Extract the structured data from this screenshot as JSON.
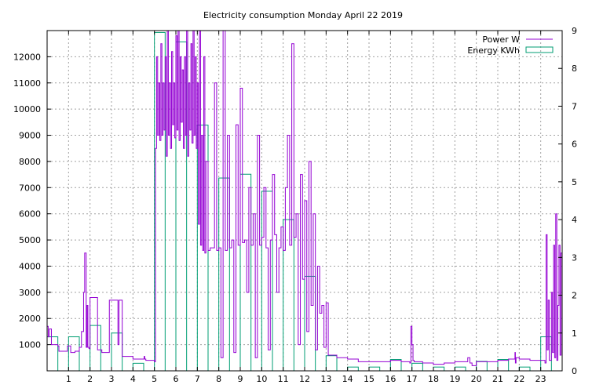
{
  "chart_data": {
    "type": "line",
    "title": "Electricity consumption Monday April 22 2019",
    "x_ticks": [
      1,
      2,
      3,
      4,
      5,
      6,
      7,
      8,
      9,
      10,
      11,
      12,
      13,
      14,
      15,
      16,
      17,
      18,
      19,
      20,
      21,
      22,
      23
    ],
    "xlim": [
      0,
      24
    ],
    "ylim": [
      0,
      13000
    ],
    "y_ticks": [
      1000,
      2000,
      3000,
      4000,
      5000,
      6000,
      7000,
      8000,
      9000,
      10000,
      11000,
      12000
    ],
    "y2lim": [
      0,
      9
    ],
    "y2_ticks": [
      0,
      1,
      2,
      3,
      4,
      5,
      6,
      7,
      8,
      9
    ],
    "grid": true,
    "legend_position": "top-right",
    "colors": {
      "power": "#9400d3",
      "energy": "#009e73",
      "grid": "#a0a0a0",
      "axis": "#000000"
    },
    "series": [
      {
        "name": "Power W",
        "axis": "left",
        "style": "line",
        "x": [
          0.0,
          0.05,
          0.1,
          0.2,
          0.3,
          0.5,
          0.55,
          0.8,
          0.95,
          1.0,
          1.1,
          1.2,
          1.3,
          1.5,
          1.6,
          1.7,
          1.75,
          1.82,
          1.86,
          1.9,
          1.95,
          2.0,
          2.1,
          2.3,
          2.35,
          2.5,
          2.55,
          2.8,
          2.9,
          3.05,
          3.1,
          3.3,
          3.35,
          3.5,
          4.0,
          4.5,
          4.52,
          4.55,
          4.6,
          5.0,
          5.05,
          5.1,
          5.15,
          5.2,
          5.25,
          5.3,
          5.35,
          5.4,
          5.45,
          5.5,
          5.55,
          5.6,
          5.65,
          5.7,
          5.75,
          5.8,
          5.85,
          5.9,
          5.95,
          6.0,
          6.05,
          6.1,
          6.15,
          6.2,
          6.25,
          6.3,
          6.35,
          6.4,
          6.45,
          6.5,
          6.55,
          6.6,
          6.65,
          6.7,
          6.75,
          6.8,
          6.85,
          6.9,
          6.95,
          7.0,
          7.05,
          7.1,
          7.15,
          7.2,
          7.25,
          7.3,
          7.35,
          7.4,
          7.5,
          7.6,
          7.7,
          7.8,
          7.9,
          8.0,
          8.1,
          8.2,
          8.3,
          8.4,
          8.5,
          8.6,
          8.7,
          8.8,
          8.9,
          9.0,
          9.1,
          9.2,
          9.3,
          9.4,
          9.5,
          9.6,
          9.7,
          9.8,
          9.9,
          10.0,
          10.1,
          10.2,
          10.3,
          10.4,
          10.5,
          10.6,
          10.7,
          10.8,
          10.9,
          11.0,
          11.1,
          11.2,
          11.3,
          11.4,
          11.5,
          11.6,
          11.7,
          11.8,
          11.9,
          12.0,
          12.1,
          12.2,
          12.3,
          12.4,
          12.5,
          12.6,
          12.7,
          12.8,
          12.9,
          13.0,
          13.1,
          13.2,
          13.5,
          14.0,
          14.5,
          15.0,
          15.5,
          16.0,
          16.5,
          16.9,
          16.95,
          17.0,
          17.05,
          17.1,
          17.5,
          18.0,
          18.5,
          19.0,
          19.5,
          19.6,
          19.7,
          19.8,
          20.0,
          20.5,
          21.0,
          21.5,
          21.8,
          21.82,
          21.85,
          22.0,
          22.5,
          23.0,
          23.2,
          23.25,
          23.3,
          23.35,
          23.4,
          23.5,
          23.55,
          23.6,
          23.65,
          23.7,
          23.75,
          23.8,
          23.85,
          23.9,
          23.95
        ],
        "y": [
          1700,
          1300,
          1600,
          1000,
          1000,
          950,
          750,
          750,
          950,
          950,
          700,
          700,
          750,
          900,
          1500,
          3000,
          4500,
          900,
          2500,
          900,
          850,
          2800,
          2800,
          2800,
          800,
          800,
          700,
          700,
          2700,
          2700,
          2700,
          1000,
          2700,
          550,
          450,
          450,
          550,
          450,
          400,
          350,
          8500,
          12000,
          9000,
          11000,
          8800,
          12500,
          9000,
          11000,
          9200,
          12000,
          8200,
          13000,
          9000,
          11000,
          8500,
          12200,
          9400,
          11000,
          8900,
          12800,
          9200,
          13000,
          8800,
          12000,
          9500,
          11500,
          8500,
          12000,
          9000,
          13000,
          8200,
          11000,
          9200,
          12500,
          8700,
          13000,
          9000,
          12000,
          8500,
          11000,
          5600,
          13000,
          4800,
          9000,
          4600,
          12000,
          4500,
          8000,
          4600,
          4700,
          4700,
          11000,
          4600,
          4700,
          500,
          13000,
          4600,
          9000,
          4700,
          5000,
          700,
          9400,
          4800,
          10800,
          4900,
          5000,
          3000,
          7000,
          4800,
          6000,
          500,
          9000,
          4800,
          5100,
          7000,
          4700,
          800,
          5000,
          7500,
          5200,
          3000,
          4700,
          5500,
          4600,
          7000,
          9000,
          4800,
          12500,
          5100,
          6000,
          1000,
          7500,
          3500,
          6500,
          1500,
          8000,
          2500,
          6000,
          800,
          4000,
          2200,
          2500,
          900,
          2600,
          600,
          600,
          500,
          450,
          350,
          350,
          350,
          400,
          350,
          300,
          1700,
          1000,
          400,
          350,
          300,
          250,
          300,
          350,
          350,
          500,
          300,
          200,
          350,
          350,
          400,
          450,
          700,
          300,
          500,
          450,
          400,
          400,
          300,
          5200,
          800,
          2700,
          400,
          3000,
          700,
          4800,
          500,
          6000,
          400,
          2500,
          4800,
          600,
          4500
        ]
      },
      {
        "name": "Energy KWh",
        "axis": "right",
        "style": "histogram_outline",
        "x": [
          0,
          1,
          2,
          3,
          4,
          5,
          6,
          7,
          8,
          9,
          10,
          11,
          12,
          13,
          14,
          15,
          16,
          17,
          18,
          19,
          20,
          21,
          22,
          23
        ],
        "y": [
          0.9,
          0.9,
          1.2,
          1.0,
          0.2,
          8.95,
          8.7,
          6.5,
          5.1,
          5.2,
          4.75,
          4.0,
          2.5,
          0.4,
          0.1,
          0.1,
          0.3,
          0.2,
          0.1,
          0.1,
          0.25,
          0.3,
          0.1,
          0.9
        ]
      }
    ]
  }
}
